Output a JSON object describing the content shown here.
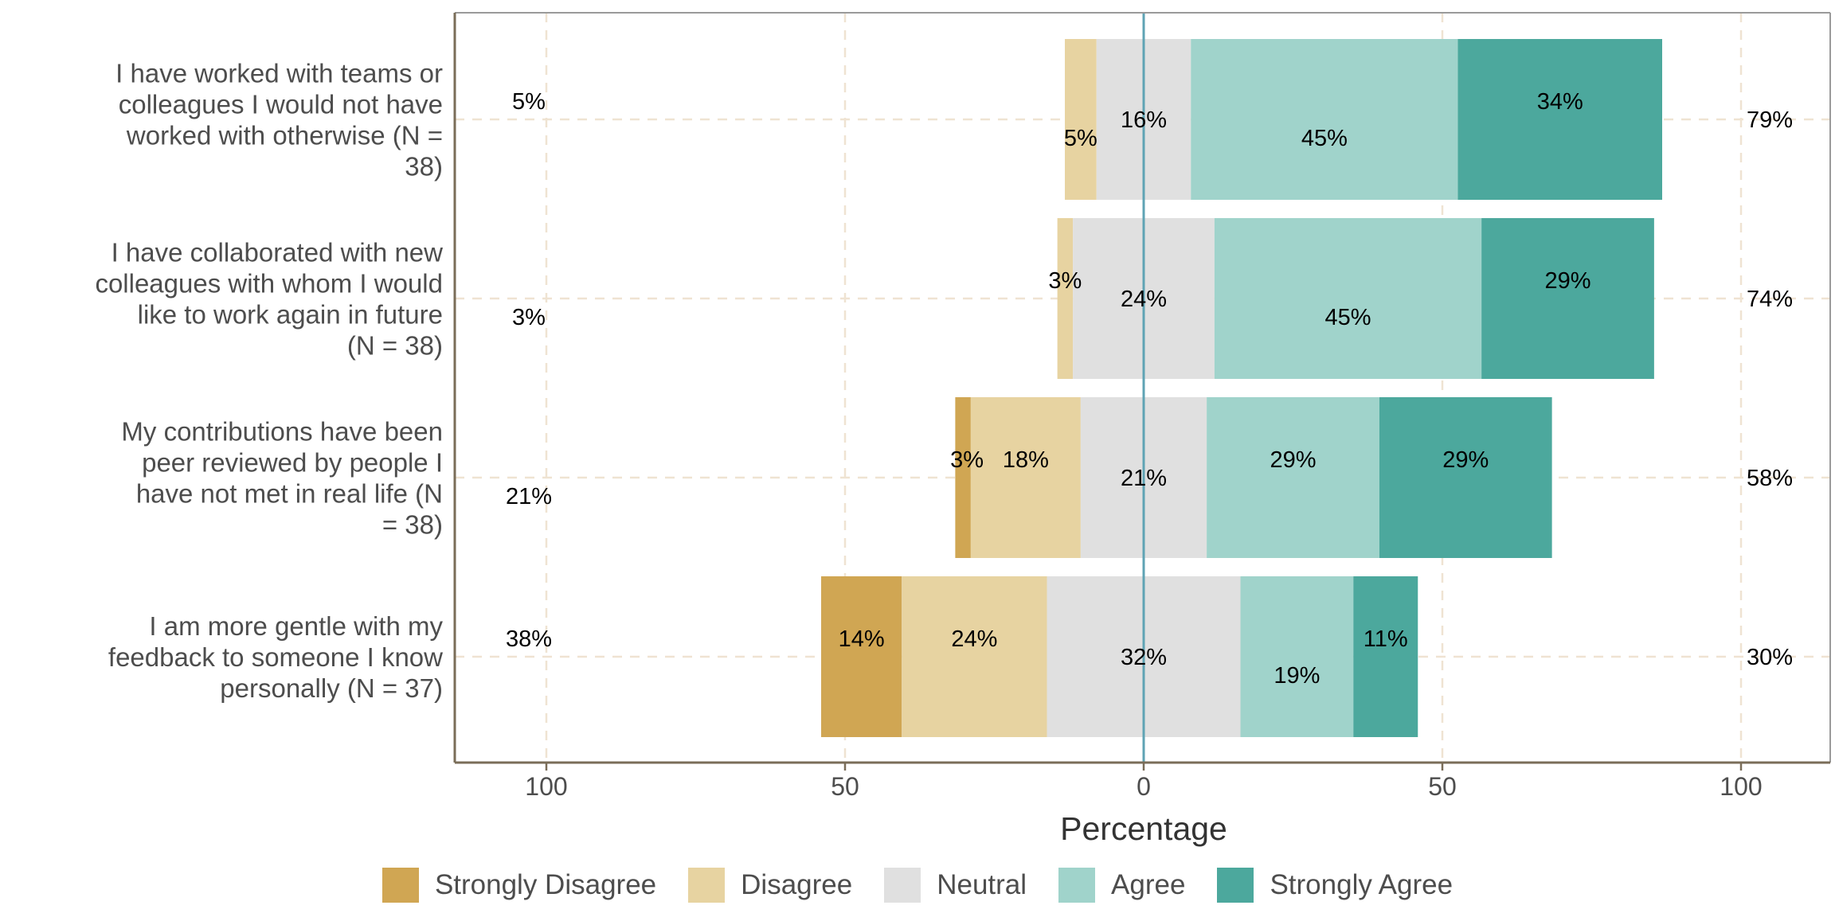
{
  "chart_data": {
    "type": "bar",
    "orientation": "horizontal-diverging",
    "xlabel": "Percentage",
    "xticks": [
      "100",
      "50",
      "0",
      "50",
      "100"
    ],
    "xlim": [
      -100,
      100
    ],
    "grid": true,
    "legend_position": "bottom",
    "levels": [
      "Strongly Disagree",
      "Disagree",
      "Neutral",
      "Agree",
      "Strongly Agree"
    ],
    "colors": [
      "#D0A653",
      "#E7D3A1",
      "#E0E0E0",
      "#A0D3CB",
      "#4CA89D"
    ],
    "rows": [
      {
        "label": "I have worked with teams or colleagues I would not have worked with otherwise (N = 38)",
        "label_lines": [
          "I have worked with teams or",
          "colleagues I would not have",
          "worked with otherwise (N =",
          "38)"
        ],
        "values": [
          0,
          5.3,
          15.8,
          44.7,
          34.2
        ],
        "labels": [
          "",
          "5%",
          "16%",
          "45%",
          "34%"
        ],
        "neg_total": "5%",
        "pos_total": "79%"
      },
      {
        "label": "I have collaborated with new colleagues with whom I would like to work again in future (N = 38)",
        "label_lines": [
          "I have collaborated with new",
          "colleagues with whom I would",
          "like to work again in future",
          "(N = 38)"
        ],
        "values": [
          0,
          2.6,
          23.7,
          44.7,
          28.9
        ],
        "labels": [
          "",
          "3%",
          "24%",
          "45%",
          "29%"
        ],
        "neg_total": "3%",
        "pos_total": "74%"
      },
      {
        "label": "My contributions have been peer reviewed by people I have not met in real life (N = 38)",
        "label_lines": [
          "My contributions have been",
          "peer reviewed by people I",
          "have not met in real life (N",
          "= 38)"
        ],
        "values": [
          2.6,
          18.4,
          21.1,
          28.9,
          28.9
        ],
        "labels": [
          "3%",
          "18%",
          "21%",
          "29%",
          "29%"
        ],
        "neg_total": "21%",
        "pos_total": "58%"
      },
      {
        "label": "I am more gentle with my feedback to someone I know personally (N = 37)",
        "label_lines": [
          "I am more gentle with my",
          "feedback to someone I know",
          "personally (N = 37)"
        ],
        "values": [
          13.5,
          24.3,
          32.4,
          18.9,
          10.8
        ],
        "labels": [
          "14%",
          "24%",
          "32%",
          "19%",
          "11%"
        ],
        "neg_total": "38%",
        "pos_total": "30%"
      }
    ]
  }
}
